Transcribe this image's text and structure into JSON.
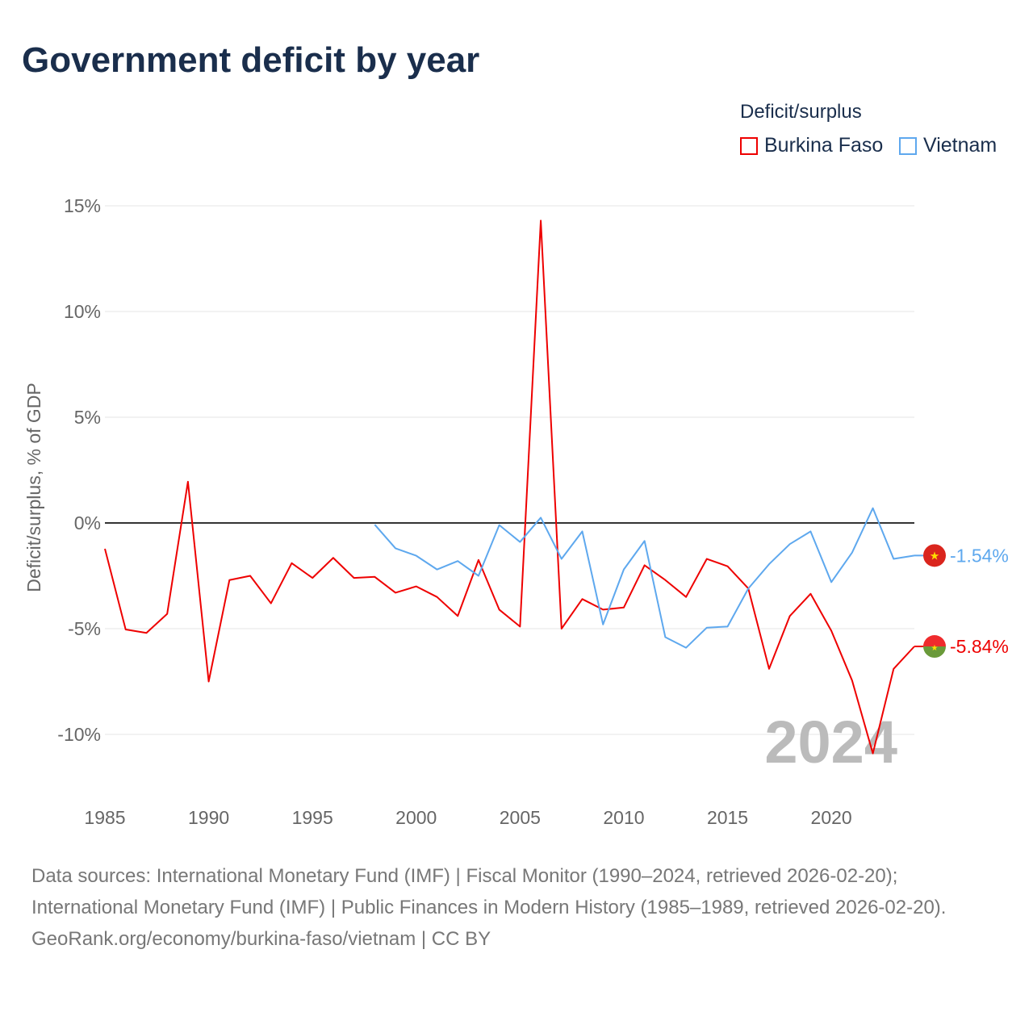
{
  "chart_data": {
    "type": "line",
    "title": "Government deficit by year",
    "ylabel": "Deficit/surplus, % of GDP",
    "xlabel": "",
    "xlim": [
      1985,
      2024
    ],
    "ylim": [
      -12.5,
      15
    ],
    "x_ticks": [
      1985,
      1990,
      1995,
      2000,
      2005,
      2010,
      2015,
      2020
    ],
    "y_ticks": [
      15,
      10,
      5,
      0,
      -5,
      -10
    ],
    "y_tick_labels": [
      "15%",
      "10%",
      "5%",
      "0%",
      "-5%",
      "-10%"
    ],
    "grid": true,
    "legend_title": "Deficit/surplus",
    "legend_position": "top-right",
    "year_watermark": "2024",
    "series": [
      {
        "name": "Burkina Faso",
        "color": "#ee0000",
        "end_label": "-5.84%",
        "x": [
          1985,
          1986,
          1987,
          1988,
          1989,
          1990,
          1991,
          1992,
          1993,
          1994,
          1995,
          1996,
          1997,
          1998,
          1999,
          2000,
          2001,
          2002,
          2003,
          2004,
          2005,
          2006,
          2007,
          2008,
          2009,
          2010,
          2011,
          2012,
          2013,
          2014,
          2015,
          2016,
          2017,
          2018,
          2019,
          2020,
          2021,
          2022,
          2023,
          2024
        ],
        "values": [
          -1.22,
          -5.04,
          -5.2,
          -4.3,
          1.95,
          -7.5,
          -2.7,
          -2.5,
          -3.8,
          -1.9,
          -2.6,
          -1.65,
          -2.6,
          -2.55,
          -3.3,
          -3.0,
          -3.5,
          -4.4,
          -1.75,
          -4.1,
          -4.9,
          14.3,
          -5.0,
          -3.6,
          -4.1,
          -4.0,
          -2.0,
          -2.7,
          -3.5,
          -1.7,
          -2.05,
          -3.1,
          -6.9,
          -4.4,
          -3.35,
          -5.1,
          -7.45,
          -10.9,
          -6.9,
          -5.84
        ]
      },
      {
        "name": "Vietnam",
        "color": "#5ea8ee",
        "end_label": "-1.54%",
        "x": [
          1998,
          1999,
          2000,
          2001,
          2002,
          2003,
          2004,
          2005,
          2006,
          2007,
          2008,
          2009,
          2010,
          2011,
          2012,
          2013,
          2014,
          2015,
          2016,
          2017,
          2018,
          2019,
          2020,
          2021,
          2022,
          2023,
          2024
        ],
        "values": [
          -0.08,
          -1.2,
          -1.55,
          -2.2,
          -1.8,
          -2.5,
          -0.1,
          -0.9,
          0.25,
          -1.7,
          -0.4,
          -4.8,
          -2.2,
          -0.85,
          -5.4,
          -5.9,
          -4.95,
          -4.9,
          -3.1,
          -1.95,
          -1.0,
          -0.4,
          -2.8,
          -1.4,
          0.7,
          -1.7,
          -1.54
        ]
      }
    ]
  },
  "footer": {
    "sources": "Data sources: International Monetary Fund (IMF) | Fiscal Monitor (1990–2024, retrieved 2026-02-20); International Monetary Fund (IMF) | Public Finances in Modern History (1985–1989, retrieved 2026-02-20).",
    "credit": "GeoRank.org/economy/burkina-faso/vietnam | CC BY"
  }
}
